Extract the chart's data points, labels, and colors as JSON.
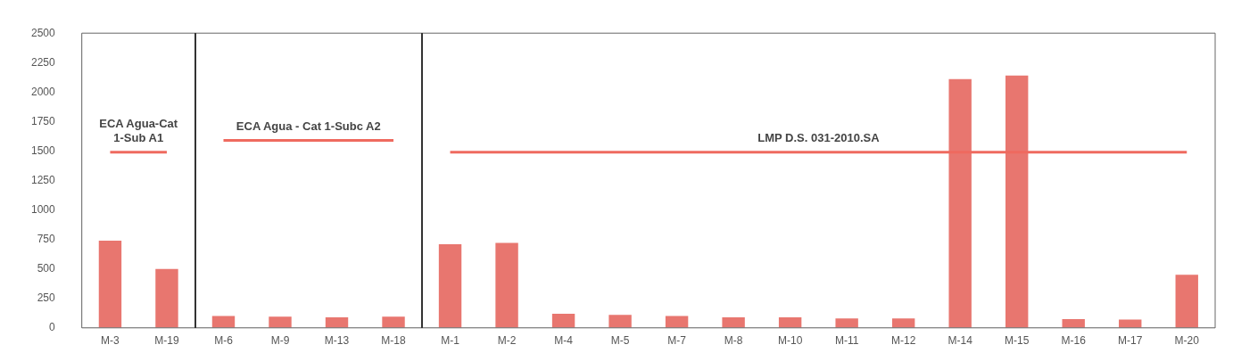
{
  "chart_data": {
    "type": "bar",
    "categories": [
      "M-3",
      "M-19",
      "M-6",
      "M-9",
      "M-13",
      "M-18",
      "M-1",
      "M-2",
      "M-4",
      "M-5",
      "M-7",
      "M-8",
      "M-10",
      "M-11",
      "M-12",
      "M-14",
      "M-15",
      "M-16",
      "M-17",
      "M-20"
    ],
    "series": [
      {
        "color": "#e8766f",
        "values": [
          740,
          500,
          100,
          95,
          90,
          95,
          710,
          720,
          120,
          110,
          100,
          90,
          90,
          80,
          80,
          2110,
          2140,
          75,
          70,
          450
        ]
      },
      {
        "type": "line",
        "name": "ECA Agua-Cat 1-Sub A1",
        "color": "#ef6a5f",
        "values": [
          1490,
          1490,
          null,
          null,
          null,
          null,
          null,
          null,
          null,
          null,
          null,
          null,
          null,
          null,
          null,
          null,
          null,
          null,
          null,
          null
        ]
      },
      {
        "type": "line",
        "name": "ECA Agua - Cat 1-Subc A2",
        "color": "#ef6a5f",
        "values": [
          null,
          null,
          1590,
          1590,
          1590,
          1590,
          null,
          null,
          null,
          null,
          null,
          null,
          null,
          null,
          null,
          null,
          null,
          null,
          null,
          null
        ]
      },
      {
        "type": "line",
        "name": "LMP D.S. 031-2010.SA",
        "color": "#ef6a5f",
        "values": [
          null,
          null,
          null,
          null,
          null,
          null,
          1490,
          1490,
          1490,
          1490,
          1490,
          1490,
          1490,
          1490,
          1490,
          1490,
          1490,
          1490,
          1490,
          1490
        ]
      }
    ],
    "ylim": [
      0,
      2500
    ],
    "yticks": [
      0,
      250,
      500,
      750,
      1000,
      1250,
      1500,
      1750,
      2000,
      2250,
      2500
    ],
    "grid": false,
    "legend": false
  }
}
